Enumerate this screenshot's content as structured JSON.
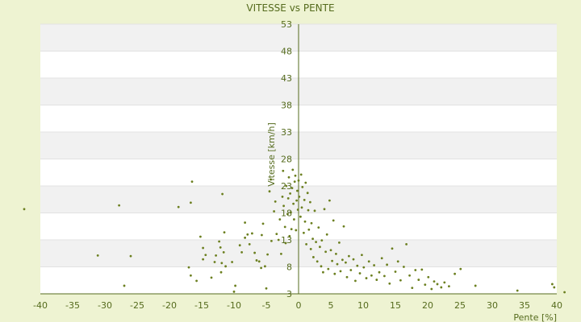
{
  "chart_data": {
    "type": "scatter",
    "title": "VITESSE vs PENTE",
    "xlabel": "Pente [%]",
    "ylabel": "Vitesse [km/h]",
    "xlim": [
      -40,
      40
    ],
    "ylim": [
      3,
      53
    ],
    "xticks": [
      -40,
      -35,
      -30,
      -25,
      -20,
      -15,
      -10,
      -5,
      0,
      5,
      10,
      15,
      20,
      25,
      30,
      35,
      40
    ],
    "yticks": [
      3,
      8,
      13,
      18,
      23,
      28,
      33,
      38,
      43,
      48,
      53
    ],
    "grid": true,
    "legend": "none",
    "colors": {
      "background": "#eef3d2",
      "plot_band_light": "#ffffff",
      "plot_band_dark": "#f1f1f1",
      "axis": "#556b1d",
      "marker": "#6b7f1f",
      "text": "#556b1d"
    },
    "series": [
      {
        "values": [
          [
            -42.5,
            18.7
          ],
          [
            -31.1,
            10.1
          ],
          [
            -27.8,
            19.4
          ],
          [
            -26.0,
            10.0
          ],
          [
            -27.0,
            4.5
          ],
          [
            -18.6,
            19.1
          ],
          [
            -16.7,
            19.9
          ],
          [
            -16.5,
            23.8
          ],
          [
            -16.7,
            6.4
          ],
          [
            -17.0,
            7.9
          ],
          [
            -15.8,
            5.4
          ],
          [
            -15.2,
            13.6
          ],
          [
            -14.8,
            11.5
          ],
          [
            -14.8,
            9.4
          ],
          [
            -14.4,
            10.2
          ],
          [
            -13.5,
            6.0
          ],
          [
            -13.0,
            8.9
          ],
          [
            -12.8,
            10.1
          ],
          [
            -12.3,
            12.7
          ],
          [
            -12.1,
            11.6
          ],
          [
            -12.0,
            7.0
          ],
          [
            -11.5,
            14.4
          ],
          [
            -11.3,
            8.1
          ],
          [
            -11.8,
            21.5
          ],
          [
            -11.9,
            8.7
          ],
          [
            -11.6,
            10.7
          ],
          [
            -10.3,
            8.9
          ],
          [
            -10.0,
            3.4
          ],
          [
            -9.8,
            4.5
          ],
          [
            -9.1,
            12.0
          ],
          [
            -8.8,
            10.7
          ],
          [
            -8.3,
            13.4
          ],
          [
            -8.3,
            16.2
          ],
          [
            -7.9,
            14.0
          ],
          [
            -7.6,
            12.2
          ],
          [
            -7.2,
            14.2
          ],
          [
            -6.8,
            10.6
          ],
          [
            -6.5,
            9.2
          ],
          [
            -6.1,
            9.0
          ],
          [
            -5.8,
            7.8
          ],
          [
            -5.7,
            13.9
          ],
          [
            -5.5,
            16.0
          ],
          [
            -5.2,
            8.1
          ],
          [
            -5.0,
            4.0
          ],
          [
            -4.8,
            10.3
          ],
          [
            -4.5,
            22.0
          ],
          [
            -4.3,
            24.2
          ],
          [
            -4.2,
            12.8
          ],
          [
            -3.8,
            18.3
          ],
          [
            -3.6,
            20.1
          ],
          [
            -3.4,
            14.1
          ],
          [
            -3.1,
            13.0
          ],
          [
            -2.9,
            16.8
          ],
          [
            -2.7,
            10.4
          ],
          [
            -2.5,
            21.0
          ],
          [
            -2.4,
            25.8
          ],
          [
            -2.3,
            19.3
          ],
          [
            -2.1,
            15.4
          ],
          [
            -2.0,
            12.4
          ],
          [
            -1.9,
            23.0
          ],
          [
            -1.7,
            17.8
          ],
          [
            -1.6,
            20.7
          ],
          [
            -1.5,
            24.6
          ],
          [
            -1.4,
            13.7
          ],
          [
            -1.3,
            21.6
          ],
          [
            -1.2,
            18.1
          ],
          [
            -1.1,
            15.0
          ],
          [
            -1.0,
            22.6
          ],
          [
            -0.9,
            26.0
          ],
          [
            -0.8,
            19.7
          ],
          [
            -0.7,
            16.8
          ],
          [
            -0.6,
            23.8
          ],
          [
            -0.5,
            24.9
          ],
          [
            -0.4,
            14.8
          ],
          [
            -0.3,
            20.3
          ],
          [
            -0.2,
            22.1
          ],
          [
            -0.1,
            18.6
          ],
          [
            0.0,
            24.0
          ],
          [
            0.1,
            21.0
          ],
          [
            0.3,
            17.3
          ],
          [
            0.4,
            25.1
          ],
          [
            0.5,
            19.0
          ],
          [
            0.6,
            22.8
          ],
          [
            0.8,
            14.3
          ],
          [
            0.9,
            20.4
          ],
          [
            1.0,
            16.4
          ],
          [
            1.1,
            23.6
          ],
          [
            1.2,
            12.2
          ],
          [
            1.4,
            21.7
          ],
          [
            1.5,
            18.5
          ],
          [
            1.6,
            14.9
          ],
          [
            1.8,
            20.0
          ],
          [
            1.9,
            11.3
          ],
          [
            2.0,
            16.1
          ],
          [
            2.2,
            13.2
          ],
          [
            2.3,
            9.8
          ],
          [
            2.5,
            18.4
          ],
          [
            2.7,
            12.6
          ],
          [
            2.9,
            9.0
          ],
          [
            3.1,
            15.3
          ],
          [
            3.3,
            11.7
          ],
          [
            3.5,
            8.1
          ],
          [
            3.6,
            12.9
          ],
          [
            3.8,
            7.0
          ],
          [
            4.0,
            18.7
          ],
          [
            4.2,
            10.8
          ],
          [
            4.4,
            14.0
          ],
          [
            4.6,
            7.6
          ],
          [
            4.8,
            20.3
          ],
          [
            5.0,
            11.1
          ],
          [
            5.2,
            9.1
          ],
          [
            5.4,
            16.6
          ],
          [
            5.6,
            6.7
          ],
          [
            5.8,
            10.4
          ],
          [
            6.0,
            8.5
          ],
          [
            6.3,
            12.5
          ],
          [
            6.5,
            7.2
          ],
          [
            6.8,
            9.3
          ],
          [
            7.0,
            15.5
          ],
          [
            7.3,
            8.8
          ],
          [
            7.5,
            6.1
          ],
          [
            7.8,
            10.0
          ],
          [
            8.1,
            7.4
          ],
          [
            8.5,
            9.4
          ],
          [
            8.8,
            5.4
          ],
          [
            9.1,
            8.2
          ],
          [
            9.5,
            6.8
          ],
          [
            9.8,
            10.2
          ],
          [
            10.1,
            7.9
          ],
          [
            10.5,
            5.9
          ],
          [
            10.9,
            9.0
          ],
          [
            11.3,
            6.4
          ],
          [
            11.7,
            8.3
          ],
          [
            12.1,
            5.6
          ],
          [
            12.5,
            7.0
          ],
          [
            12.9,
            9.6
          ],
          [
            13.3,
            6.3
          ],
          [
            13.7,
            8.4
          ],
          [
            14.1,
            4.9
          ],
          [
            14.5,
            11.4
          ],
          [
            15.0,
            7.1
          ],
          [
            15.4,
            9.0
          ],
          [
            15.8,
            5.5
          ],
          [
            16.3,
            8.0
          ],
          [
            16.7,
            12.2
          ],
          [
            17.2,
            6.4
          ],
          [
            17.6,
            4.1
          ],
          [
            18.1,
            7.4
          ],
          [
            18.6,
            5.6
          ],
          [
            19.1,
            7.5
          ],
          [
            19.6,
            4.7
          ],
          [
            20.1,
            6.1
          ],
          [
            20.6,
            3.9
          ],
          [
            21.0,
            5.3
          ],
          [
            21.5,
            4.8
          ],
          [
            22.1,
            4.2
          ],
          [
            22.6,
            5.1
          ],
          [
            23.3,
            4.4
          ],
          [
            24.2,
            6.7
          ],
          [
            25.1,
            7.6
          ],
          [
            27.4,
            4.5
          ],
          [
            33.9,
            3.6
          ],
          [
            39.3,
            4.8
          ],
          [
            39.6,
            4.2
          ],
          [
            41.2,
            3.3
          ]
        ]
      }
    ]
  }
}
